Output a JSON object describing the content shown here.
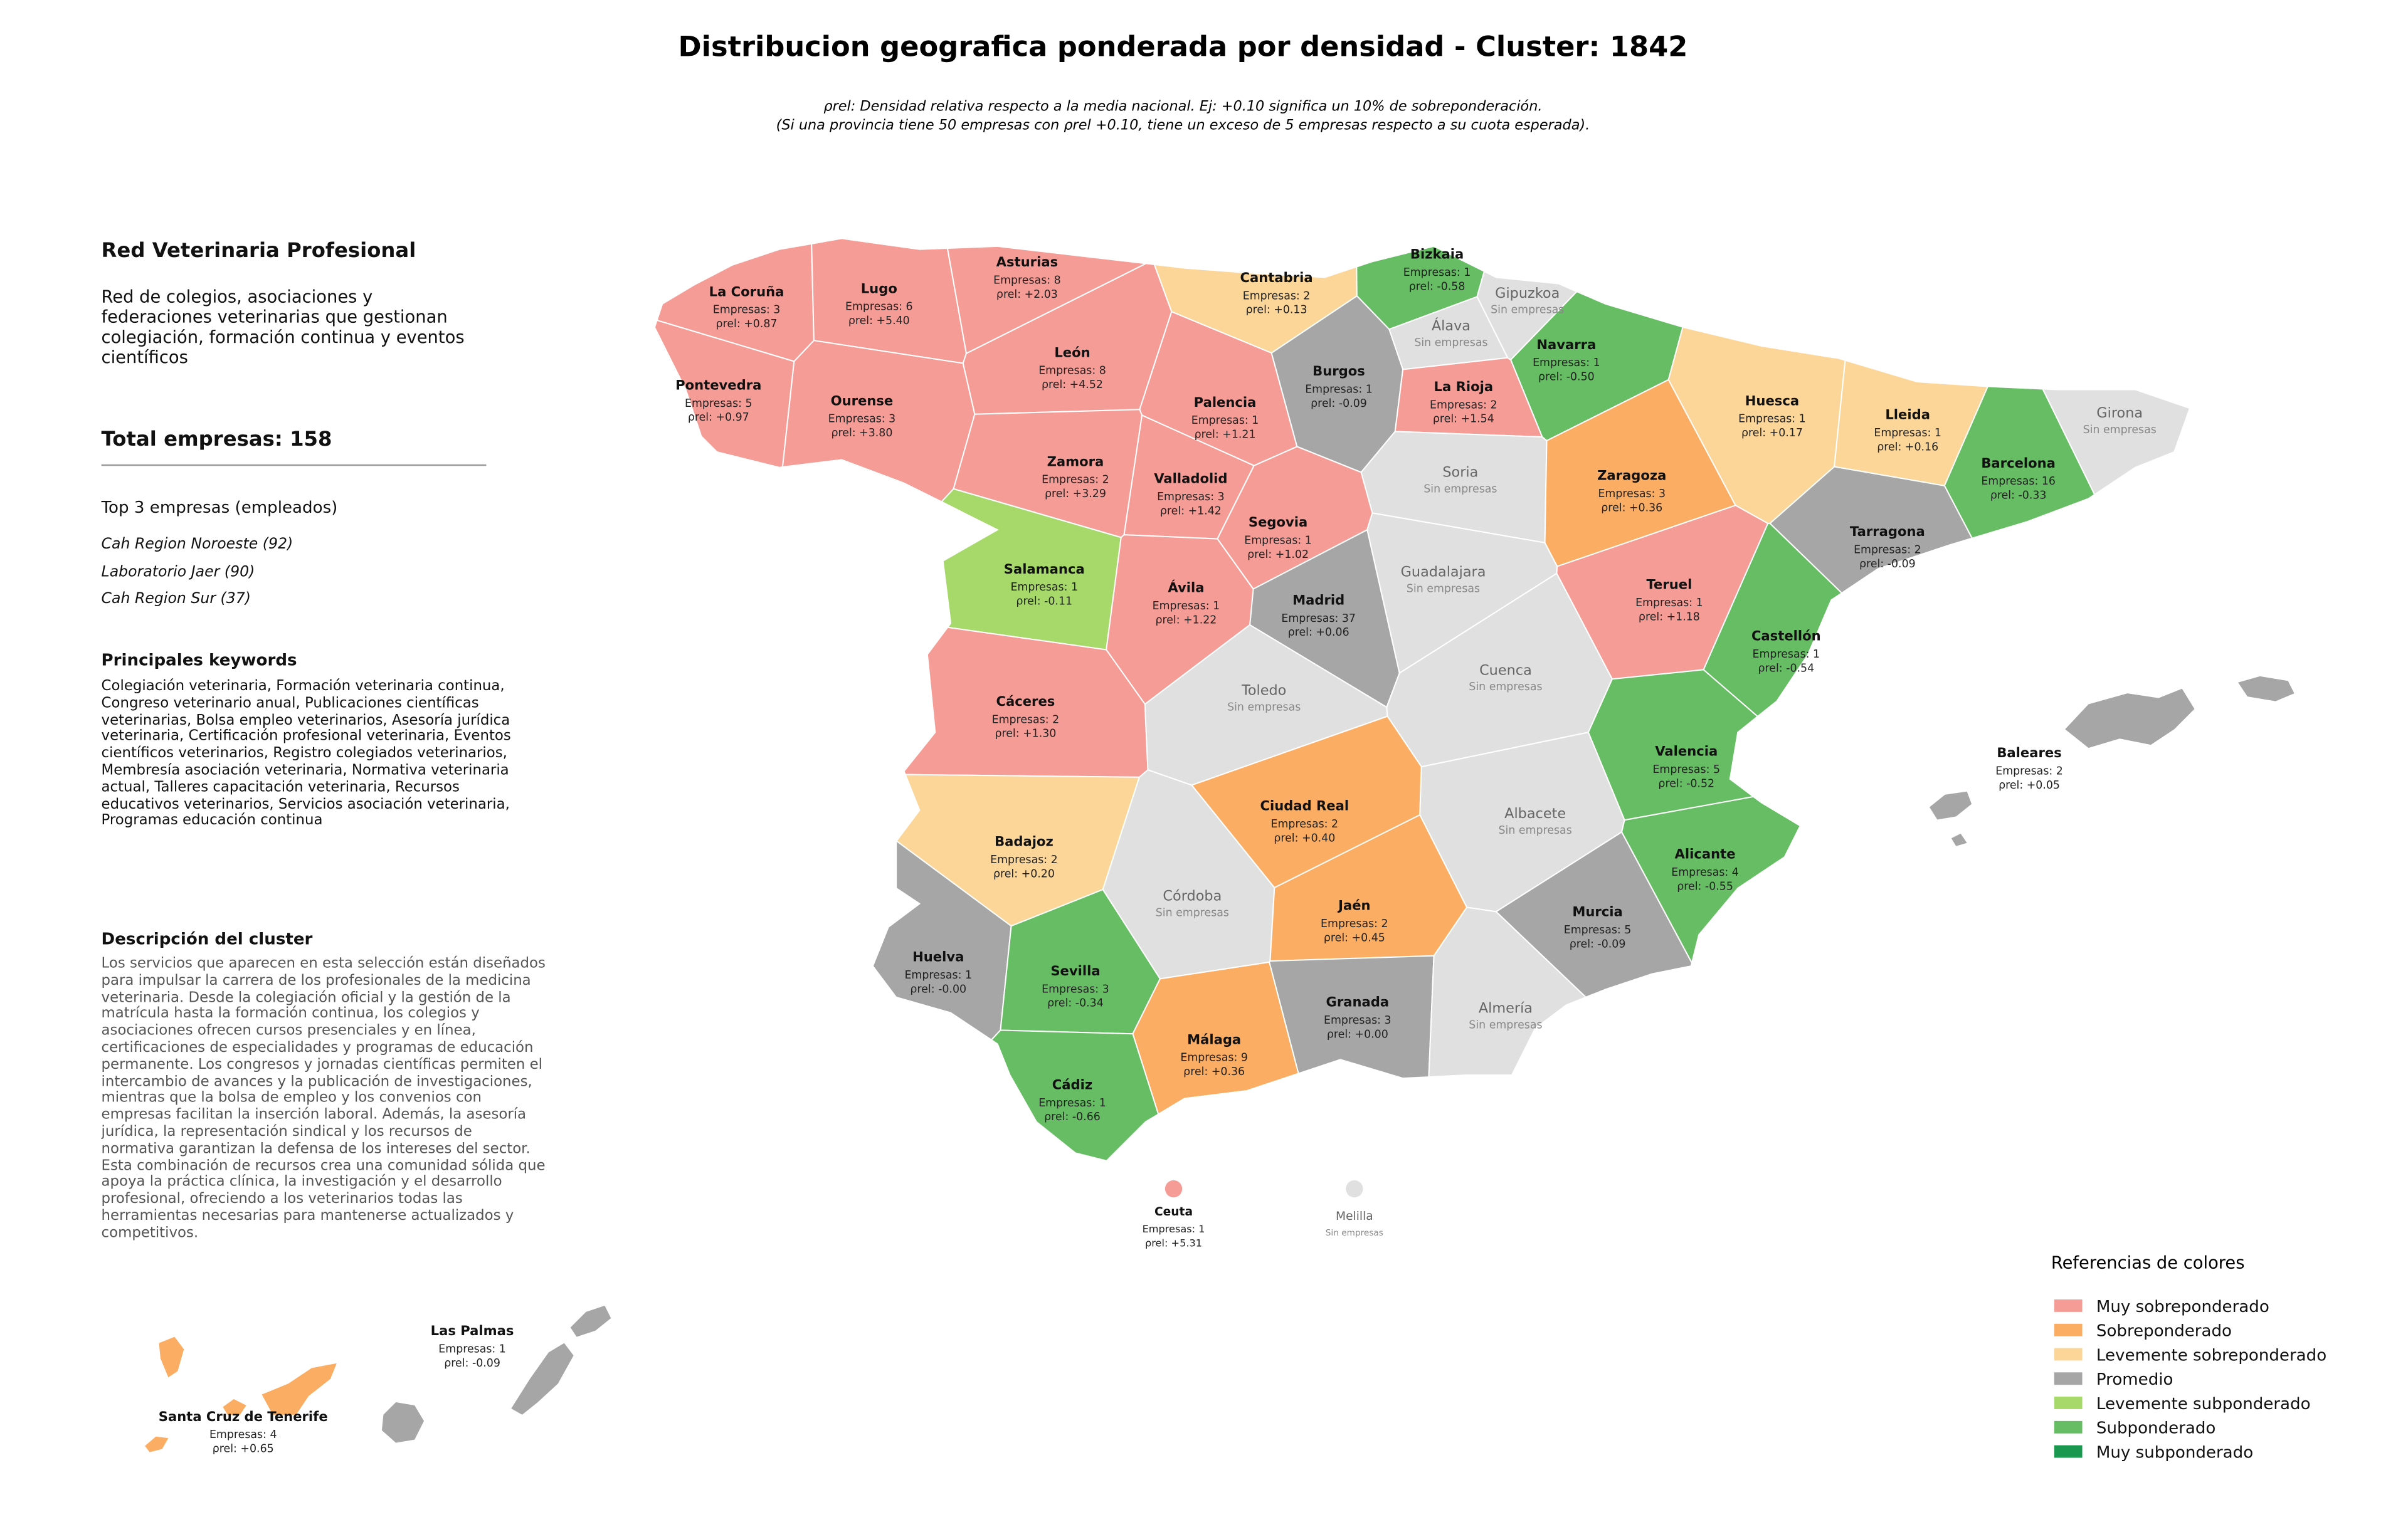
{
  "title": "Distribucion geografica ponderada por densidad - Cluster: 1842",
  "subtitle": [
    "ρrel: Densidad relativa respecto a la media nacional. Ej: +0.10 significa un 10% de sobreponderación.",
    "(Si una provincia tiene 50 empresas con ρrel +0.10, tiene un exceso de 5 empresas respecto a su cuota esperada)."
  ],
  "sidebar": {
    "name": "Red Veterinaria Profesional",
    "summary": "Red de colegios, asociaciones y federaciones veterinarias que gestionan colegiación, formación continua y eventos científicos",
    "total": "Total empresas: 158",
    "top_title": "Top 3 empresas (empleados)",
    "top": [
      "Cah Region Noroeste (92)",
      "Laboratorio Jaer (90)",
      "Cah Region Sur (37)"
    ],
    "keywords_title": "Principales keywords",
    "keywords": "Colegiación veterinaria, Formación veterinaria continua, Congreso veterinario anual, Publicaciones científicas veterinarias, Bolsa empleo veterinarios, Asesoría jurídica veterinaria, Certificación profesional veterinaria, Eventos científicos veterinarios, Registro colegiados veterinarios, Membresía asociación veterinaria, Normativa veterinaria actual, Talleres capacitación veterinaria, Recursos educativos veterinarios, Servicios asociación veterinaria, Programas educación continua",
    "description_title": "Descripción del cluster",
    "description": "Los servicios que aparecen en esta selección están diseñados para impulsar la carrera de los profesionales de la medicina veterinaria. Desde la colegiación oficial y la gestión de la matrícula hasta la formación continua, los colegios y asociaciones ofrecen cursos presenciales y en línea, certificaciones de especialidades y programas de educación permanente. Los congresos y jornadas científicas permiten el intercambio de avances y la publicación de investigaciones, mientras que la bolsa de empleo y los convenios con empresas facilitan la inserción laboral. Además, la asesoría jurídica, la representación sindical y los recursos de normativa garantizan la defensa de los intereses del sector. Esta combinación de recursos crea una comunidad sólida que apoya la práctica clínica, la investigación y el desarrollo profesional, ofreciendo a los veterinarios todas las herramientas necesarias para mantenerse actualizados y competitivos."
  },
  "legend": {
    "title": "Referencias de colores",
    "items": [
      {
        "label": "Muy sobreponderado",
        "color": "#f69c96"
      },
      {
        "label": "Sobreponderado",
        "color": "#fbad63"
      },
      {
        "label": "Levemente sobreponderado",
        "color": "#fcd698"
      },
      {
        "label": "Promedio",
        "color": "#a6a6a6"
      },
      {
        "label": "Levemente subponderado",
        "color": "#a6d96a"
      },
      {
        "label": "Subponderado",
        "color": "#66bd63"
      },
      {
        "label": "Muy subponderado",
        "color": "#1a9850"
      }
    ]
  },
  "no_data_color": "#e0e0e0",
  "provinces": [
    {
      "name": "La Coruña",
      "empresas": "Empresas: 3",
      "rho": "ρrel: +0.87",
      "level": 0
    },
    {
      "name": "Lugo",
      "empresas": "Empresas: 6",
      "rho": "ρrel: +5.40",
      "level": 0
    },
    {
      "name": "Asturias",
      "empresas": "Empresas: 8",
      "rho": "ρrel: +2.03",
      "level": 0
    },
    {
      "name": "Cantabria",
      "empresas": "Empresas: 2",
      "rho": "ρrel: +0.13",
      "level": 2
    },
    {
      "name": "Bizkaia",
      "empresas": "Empresas: 1",
      "rho": "ρrel: -0.58",
      "level": 5
    },
    {
      "name": "Gipuzkoa",
      "empresas": "Sin empresas",
      "level": null
    },
    {
      "name": "Álava",
      "empresas": "Sin empresas",
      "level": null
    },
    {
      "name": "Navarra",
      "empresas": "Empresas: 1",
      "rho": "ρrel: -0.50",
      "level": 5
    },
    {
      "name": "Pontevedra",
      "empresas": "Empresas: 5",
      "rho": "ρrel: +0.97",
      "level": 0
    },
    {
      "name": "Ourense",
      "empresas": "Empresas: 3",
      "rho": "ρrel: +3.80",
      "level": 0
    },
    {
      "name": "León",
      "empresas": "Empresas: 8",
      "rho": "ρrel: +4.52",
      "level": 0
    },
    {
      "name": "Palencia",
      "empresas": "Empresas: 1",
      "rho": "ρrel: +1.21",
      "level": 0
    },
    {
      "name": "Burgos",
      "empresas": "Empresas: 1",
      "rho": "ρrel: -0.09",
      "level": 3
    },
    {
      "name": "La Rioja",
      "empresas": "Empresas: 2",
      "rho": "ρrel: +1.54",
      "level": 0
    },
    {
      "name": "Huesca",
      "empresas": "Empresas: 1",
      "rho": "ρrel: +0.17",
      "level": 2
    },
    {
      "name": "Lleida",
      "empresas": "Empresas: 1",
      "rho": "ρrel: +0.16",
      "level": 2
    },
    {
      "name": "Girona",
      "empresas": "Sin empresas",
      "level": null
    },
    {
      "name": "Barcelona",
      "empresas": "Empresas: 16",
      "rho": "ρrel: -0.33",
      "level": 5
    },
    {
      "name": "Soria",
      "empresas": "Sin empresas",
      "level": null
    },
    {
      "name": "Zaragoza",
      "empresas": "Empresas: 3",
      "rho": "ρrel: +0.36",
      "level": 1
    },
    {
      "name": "Zamora",
      "empresas": "Empresas: 2",
      "rho": "ρrel: +3.29",
      "level": 0
    },
    {
      "name": "Valladolid",
      "empresas": "Empresas: 3",
      "rho": "ρrel: +1.42",
      "level": 0
    },
    {
      "name": "Segovia",
      "empresas": "Empresas: 1",
      "rho": "ρrel: +1.02",
      "level": 0
    },
    {
      "name": "Tarragona",
      "empresas": "Empresas: 2",
      "rho": "ρrel: -0.09",
      "level": 3
    },
    {
      "name": "Salamanca",
      "empresas": "Empresas: 1",
      "rho": "ρrel: -0.11",
      "level": 4
    },
    {
      "name": "Guadalajara",
      "empresas": "Sin empresas",
      "level": null
    },
    {
      "name": "Madrid",
      "empresas": "Empresas: 37",
      "rho": "ρrel: +0.06",
      "level": 3
    },
    {
      "name": "Ávila",
      "empresas": "Empresas: 1",
      "rho": "ρrel: +1.22",
      "level": 0
    },
    {
      "name": "Teruel",
      "empresas": "Empresas: 1",
      "rho": "ρrel: +1.18",
      "level": 0
    },
    {
      "name": "Castellón",
      "empresas": "Empresas: 1",
      "rho": "ρrel: -0.54",
      "level": 5
    },
    {
      "name": "Cáceres",
      "empresas": "Empresas: 2",
      "rho": "ρrel: +1.30",
      "level": 0
    },
    {
      "name": "Toledo",
      "empresas": "Sin empresas",
      "level": null
    },
    {
      "name": "Cuenca",
      "empresas": "Sin empresas",
      "level": null
    },
    {
      "name": "Valencia",
      "empresas": "Empresas: 5",
      "rho": "ρrel: -0.52",
      "level": 5
    },
    {
      "name": "Baleares",
      "empresas": "Empresas: 2",
      "rho": "ρrel: +0.05",
      "level": 3
    },
    {
      "name": "Badajoz",
      "empresas": "Empresas: 2",
      "rho": "ρrel: +0.20",
      "level": 2
    },
    {
      "name": "Ciudad Real",
      "empresas": "Empresas: 2",
      "rho": "ρrel: +0.40",
      "level": 1
    },
    {
      "name": "Albacete",
      "empresas": "Sin empresas",
      "level": null
    },
    {
      "name": "Alicante",
      "empresas": "Empresas: 4",
      "rho": "ρrel: -0.55",
      "level": 5
    },
    {
      "name": "Córdoba",
      "empresas": "Sin empresas",
      "level": null
    },
    {
      "name": "Jaén",
      "empresas": "Empresas: 2",
      "rho": "ρrel: +0.45",
      "level": 1
    },
    {
      "name": "Murcia",
      "empresas": "Empresas: 5",
      "rho": "ρrel: -0.09",
      "level": 3
    },
    {
      "name": "Huelva",
      "empresas": "Empresas: 1",
      "rho": "ρrel: -0.00",
      "level": 3
    },
    {
      "name": "Sevilla",
      "empresas": "Empresas: 3",
      "rho": "ρrel: -0.34",
      "level": 5
    },
    {
      "name": "Granada",
      "empresas": "Empresas: 3",
      "rho": "ρrel: +0.00",
      "level": 3
    },
    {
      "name": "Almería",
      "empresas": "Sin empresas",
      "level": null
    },
    {
      "name": "Málaga",
      "empresas": "Empresas: 9",
      "rho": "ρrel: +0.36",
      "level": 1
    },
    {
      "name": "Cádiz",
      "empresas": "Empresas: 1",
      "rho": "ρrel: -0.66",
      "level": 5
    },
    {
      "name": "Ceuta",
      "empresas": "Empresas: 1",
      "rho": "ρrel: +5.31",
      "level": 0
    },
    {
      "name": "Melilla",
      "empresas": "Sin empresas",
      "level": null
    },
    {
      "name": "Las Palmas",
      "empresas": "Empresas: 1",
      "rho": "ρrel: -0.09",
      "level": 3
    },
    {
      "name": "Santa Cruz de Tenerife",
      "empresas": "Empresas: 4",
      "rho": "ρrel: +0.65",
      "level": 1
    }
  ]
}
